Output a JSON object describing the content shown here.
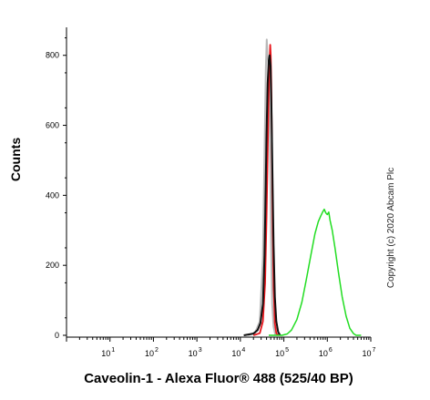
{
  "chart_data": {
    "type": "line",
    "title": "",
    "xlabel": "Caveolin-1 - Alexa Fluor® 488  (525/40 BP)",
    "ylabel": "Counts",
    "x_scale": "log",
    "xlim": [
      1,
      10000000
    ],
    "ylim": [
      0,
      880
    ],
    "x_tick_labels": [
      {
        "base": "10",
        "exp": "1",
        "value": 10
      },
      {
        "base": "10",
        "exp": "2",
        "value": 100
      },
      {
        "base": "10",
        "exp": "3",
        "value": 1000
      },
      {
        "base": "10",
        "exp": "4",
        "value": 10000
      },
      {
        "base": "10",
        "exp": "5",
        "value": 100000
      },
      {
        "base": "10",
        "exp": "6",
        "value": 1000000
      },
      {
        "base": "10",
        "exp": "7",
        "value": 10000000
      }
    ],
    "y_ticks": [
      0,
      200,
      400,
      600,
      800
    ],
    "legend": "none",
    "grid": false,
    "series": [
      {
        "color": "#b8b8b8",
        "stroke_width": 2,
        "points": [
          [
            15000,
            0
          ],
          [
            22000,
            8
          ],
          [
            28000,
            40
          ],
          [
            33000,
            220
          ],
          [
            36000,
            520
          ],
          [
            38500,
            760
          ],
          [
            40500,
            845
          ],
          [
            42000,
            800
          ],
          [
            44000,
            780
          ],
          [
            46000,
            740
          ],
          [
            48000,
            560
          ],
          [
            51000,
            260
          ],
          [
            54000,
            90
          ],
          [
            58000,
            25
          ],
          [
            63000,
            4
          ],
          [
            70000,
            0
          ]
        ]
      },
      {
        "color": "#e8141a",
        "stroke_width": 1.8,
        "points": [
          [
            20000,
            0
          ],
          [
            28000,
            6
          ],
          [
            33000,
            40
          ],
          [
            37000,
            150
          ],
          [
            40000,
            340
          ],
          [
            43000,
            560
          ],
          [
            46000,
            760
          ],
          [
            48500,
            830
          ],
          [
            50000,
            800
          ],
          [
            51500,
            720
          ],
          [
            53000,
            560
          ],
          [
            55000,
            330
          ],
          [
            58000,
            140
          ],
          [
            62000,
            35
          ],
          [
            67000,
            6
          ],
          [
            75000,
            0
          ]
        ]
      },
      {
        "color": "#111111",
        "stroke_width": 2,
        "points": [
          [
            12000,
            0
          ],
          [
            20000,
            5
          ],
          [
            25000,
            15
          ],
          [
            29000,
            35
          ],
          [
            33000,
            90
          ],
          [
            36000,
            230
          ],
          [
            38000,
            400
          ],
          [
            40000,
            580
          ],
          [
            42500,
            720
          ],
          [
            45000,
            785
          ],
          [
            47000,
            800
          ],
          [
            49500,
            770
          ],
          [
            52000,
            650
          ],
          [
            55000,
            440
          ],
          [
            58000,
            260
          ],
          [
            62000,
            110
          ],
          [
            67000,
            40
          ],
          [
            74000,
            10
          ],
          [
            82000,
            0
          ]
        ]
      },
      {
        "color": "#22dd22",
        "stroke_width": 1.5,
        "points": [
          [
            45000,
            0
          ],
          [
            90000,
            0
          ],
          [
            120000,
            4
          ],
          [
            150000,
            15
          ],
          [
            200000,
            45
          ],
          [
            260000,
            95
          ],
          [
            330000,
            160
          ],
          [
            420000,
            230
          ],
          [
            520000,
            290
          ],
          [
            620000,
            325
          ],
          [
            700000,
            340
          ],
          [
            780000,
            352
          ],
          [
            850000,
            360
          ],
          [
            920000,
            350
          ],
          [
            1000000,
            345
          ],
          [
            1080000,
            352
          ],
          [
            1150000,
            330
          ],
          [
            1300000,
            300
          ],
          [
            1500000,
            250
          ],
          [
            1800000,
            180
          ],
          [
            2200000,
            110
          ],
          [
            2700000,
            55
          ],
          [
            3300000,
            20
          ],
          [
            4000000,
            5
          ],
          [
            4600000,
            0
          ],
          [
            6000000,
            0
          ]
        ]
      }
    ]
  },
  "copyright": "Copyright (c) 2020 Abcam Plc"
}
